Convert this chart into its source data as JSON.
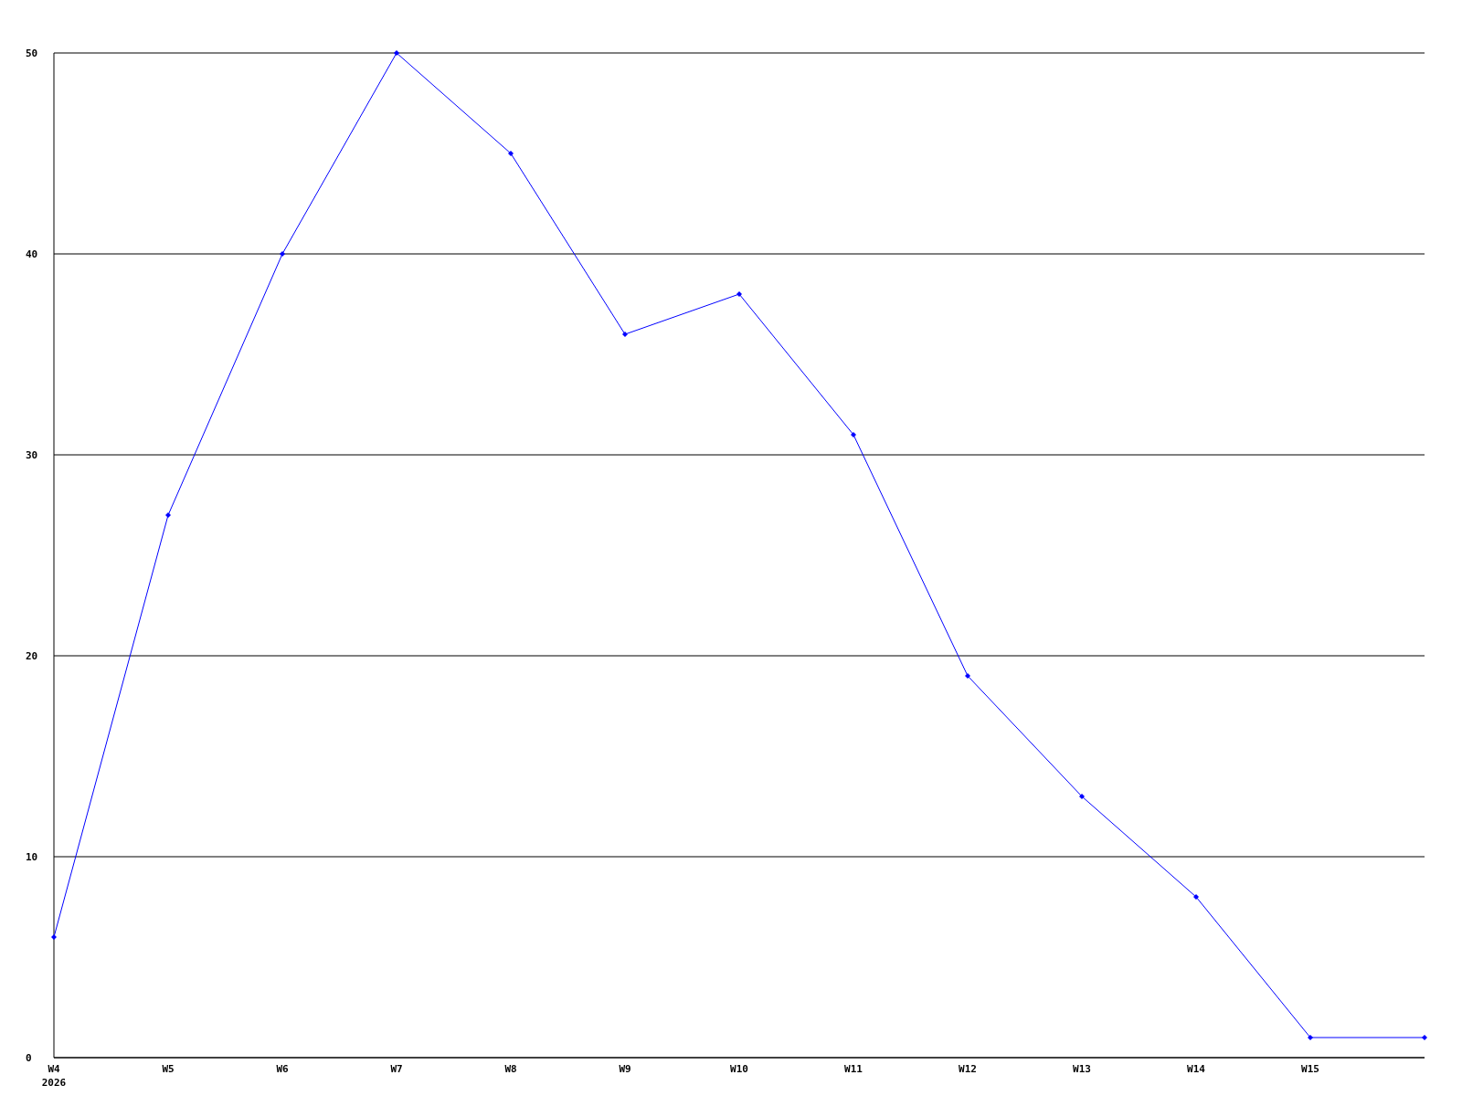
{
  "chart_data": {
    "type": "line",
    "categories": [
      "W4\n2026",
      "W5",
      "W6",
      "W7",
      "W8",
      "W9",
      "W10",
      "W11",
      "W12",
      "W13",
      "W14",
      "W15",
      null
    ],
    "series": [
      {
        "color": "#0000ff",
        "values": [
          6,
          27,
          40,
          50,
          45,
          36,
          38,
          31,
          19,
          13,
          8,
          1,
          1
        ]
      }
    ],
    "ylim": [
      0,
      50
    ],
    "yticks": [
      0,
      10,
      20,
      30,
      40,
      50
    ],
    "grid": "y",
    "marker": "diamond",
    "line_style": "solid"
  }
}
